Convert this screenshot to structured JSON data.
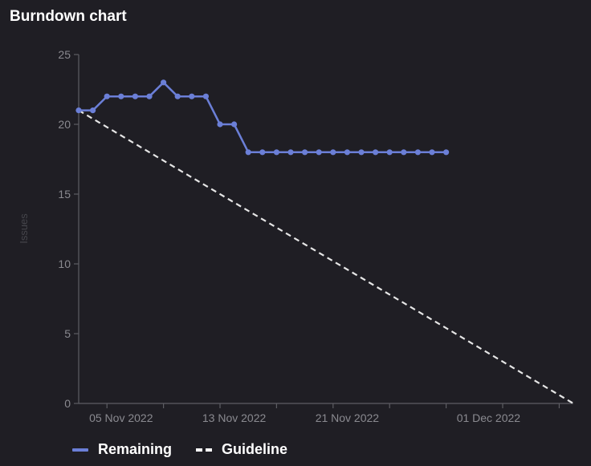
{
  "title": "Burndown chart",
  "colors": {
    "background": "#1f1e24",
    "remaining": "#6b7fd7",
    "guideline": "#e6e6e6",
    "axis": "#5d5d63",
    "tick_text": "#8a8a90",
    "ylabel": "#45454b"
  },
  "legend": {
    "remaining_label": "Remaining",
    "guideline_label": "Guideline"
  },
  "chart_data": {
    "type": "line",
    "title": "Burndown chart",
    "ylabel": "Issues",
    "xlabel": "",
    "ylim": [
      0,
      25
    ],
    "yticks": [
      0,
      5,
      10,
      15,
      20,
      25
    ],
    "xlim": [
      "2022-11-01",
      "2022-12-06"
    ],
    "xticks": [
      "2022-11-03",
      "2022-11-07",
      "2022-11-11",
      "2022-11-15",
      "2022-11-19",
      "2022-11-23",
      "2022-11-27",
      "2022-12-01",
      "2022-12-05"
    ],
    "xtick_labels": [
      {
        "date": "2022-11-04",
        "label": "05 Nov 2022"
      },
      {
        "date": "2022-11-12",
        "label": "13 Nov 2022"
      },
      {
        "date": "2022-11-20",
        "label": "21 Nov 2022"
      },
      {
        "date": "2022-11-30",
        "label": "01 Dec 2022"
      }
    ],
    "legend_position": "bottom-left",
    "grid": false,
    "series": [
      {
        "name": "Remaining",
        "style": "solid-with-markers",
        "points": [
          {
            "x": "2022-11-01",
            "y": 21
          },
          {
            "x": "2022-11-02",
            "y": 21
          },
          {
            "x": "2022-11-03",
            "y": 22
          },
          {
            "x": "2022-11-04",
            "y": 22
          },
          {
            "x": "2022-11-05",
            "y": 22
          },
          {
            "x": "2022-11-06",
            "y": 22
          },
          {
            "x": "2022-11-07",
            "y": 23
          },
          {
            "x": "2022-11-08",
            "y": 22
          },
          {
            "x": "2022-11-09",
            "y": 22
          },
          {
            "x": "2022-11-10",
            "y": 22
          },
          {
            "x": "2022-11-11",
            "y": 20
          },
          {
            "x": "2022-11-12",
            "y": 20
          },
          {
            "x": "2022-11-13",
            "y": 18
          },
          {
            "x": "2022-11-14",
            "y": 18
          },
          {
            "x": "2022-11-15",
            "y": 18
          },
          {
            "x": "2022-11-16",
            "y": 18
          },
          {
            "x": "2022-11-17",
            "y": 18
          },
          {
            "x": "2022-11-18",
            "y": 18
          },
          {
            "x": "2022-11-19",
            "y": 18
          },
          {
            "x": "2022-11-20",
            "y": 18
          },
          {
            "x": "2022-11-21",
            "y": 18
          },
          {
            "x": "2022-11-22",
            "y": 18
          },
          {
            "x": "2022-11-23",
            "y": 18
          },
          {
            "x": "2022-11-24",
            "y": 18
          },
          {
            "x": "2022-11-25",
            "y": 18
          },
          {
            "x": "2022-11-26",
            "y": 18
          },
          {
            "x": "2022-11-27",
            "y": 18
          }
        ]
      },
      {
        "name": "Guideline",
        "style": "dashed",
        "points": [
          {
            "x": "2022-11-01",
            "y": 21
          },
          {
            "x": "2022-12-06",
            "y": 0
          }
        ]
      }
    ]
  }
}
